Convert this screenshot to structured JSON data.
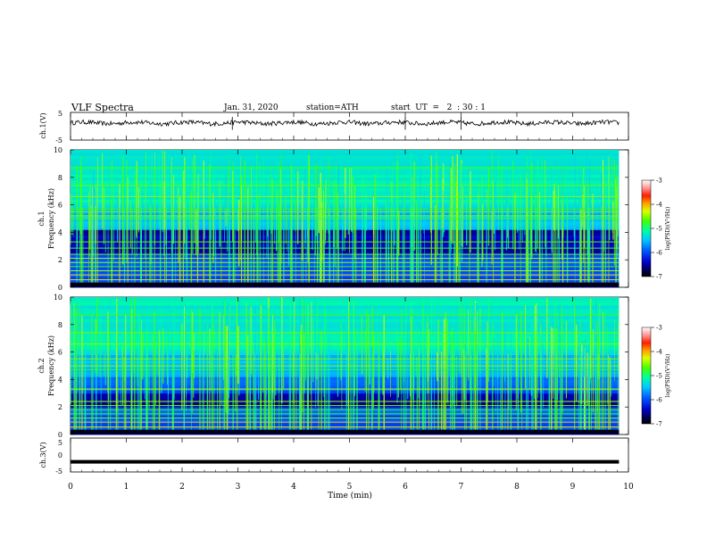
{
  "header": {
    "title": "VLF  Spectra",
    "date": "Jan. 31, 2020",
    "station": "station=ATH",
    "start": "start  UT  =   2  : 30 : 1"
  },
  "chart_data": [
    {
      "type": "line",
      "panel": "ch1-waveform",
      "ylabel": "ch.1(V)",
      "ylim": [
        -5,
        5
      ],
      "y_ticks": [
        "5",
        "-5"
      ],
      "xlim": [
        0,
        10
      ],
      "x_end": 9.83,
      "baseline": 1.2,
      "spike_times": [
        2.9,
        6.0,
        7.0
      ]
    },
    {
      "type": "heatmap",
      "panel": "ch1-spectrogram",
      "ylabel": "ch.1\nFrequency (kHz)",
      "ylim": [
        0,
        10
      ],
      "y_ticks": [
        "0",
        "2",
        "4",
        "6",
        "8",
        "10"
      ],
      "xlim": [
        0,
        10
      ],
      "x_end": 9.83,
      "colorbar": {
        "label": "log(PSD)(V²/Hz)",
        "range": [
          -7,
          -3
        ],
        "ticks": [
          "-3",
          "-4",
          "-5",
          "-6",
          "-7"
        ]
      },
      "lines_khz": [
        0.3,
        0.55,
        0.9,
        1.2,
        1.5,
        1.8,
        2.1,
        2.4,
        2.85,
        3.3,
        5.0,
        5.2,
        5.5,
        5.7,
        6.6,
        7.4,
        8.7
      ],
      "dark_bands_khz": [
        [
          2.5,
          4.2
        ]
      ]
    },
    {
      "type": "heatmap",
      "panel": "ch2-spectrogram",
      "ylabel": "ch.2\nFrequency (kHz)",
      "ylim": [
        0,
        10
      ],
      "y_ticks": [
        "0",
        "2",
        "4",
        "6",
        "8",
        "10"
      ],
      "xlim": [
        0,
        10
      ],
      "x_end": 9.83,
      "colorbar": {
        "label": "log(PSD)(V²/Hz)",
        "range": [
          -7,
          -3
        ],
        "ticks": [
          "-3",
          "-4",
          "-5",
          "-6",
          "-7"
        ]
      },
      "lines_khz": [
        0.3,
        0.55,
        0.9,
        1.2,
        1.5,
        1.8,
        2.1,
        2.4,
        3.3,
        4.7,
        5.0,
        5.5,
        6.6,
        7.4,
        8.7
      ],
      "dark_bands_khz": [
        [
          2.0,
          3.0
        ]
      ]
    },
    {
      "type": "line",
      "panel": "ch3-waveform",
      "ylabel": "ch.3(V)",
      "ylim": [
        -5,
        5
      ],
      "y_ticks": [
        "5",
        "0",
        "-5"
      ],
      "xlim": [
        0,
        10
      ],
      "x_end": 9.83,
      "baseline": -2.0,
      "xlabel": "Time (min)",
      "x_ticks": [
        "0",
        "1",
        "2",
        "3",
        "4",
        "5",
        "6",
        "7",
        "8",
        "9",
        "10"
      ]
    }
  ]
}
